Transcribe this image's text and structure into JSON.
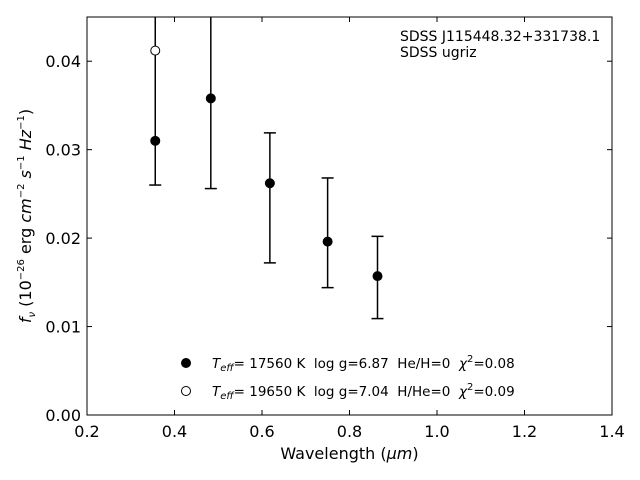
{
  "chart_data": {
    "type": "scatter",
    "xlabel": "Wavelength (",
    "xlabel_unit": "μm",
    "xlabel_close": ")",
    "ylabel_parts": {
      "f": "f",
      "f_sub": "ν",
      "open": " (10",
      "exp1": "−26",
      "mid": " erg ",
      "cm": "cm",
      "exp2": "−2",
      "s": " s",
      "exp3": "−1",
      "hz": " Hz",
      "exp4": "−1",
      "close": ")"
    },
    "xlim": [
      0.2,
      1.4
    ],
    "ylim": [
      0.0,
      0.045
    ],
    "xticks": [
      "0.2",
      "0.4",
      "0.6",
      "0.8",
      "1.0",
      "1.2",
      "1.4"
    ],
    "yticks": [
      "0.00",
      "0.01",
      "0.02",
      "0.03",
      "0.04"
    ],
    "annotation": [
      "SDSS J115448.32+331738.1",
      "SDSS ugriz"
    ],
    "observed": [
      {
        "x": 0.356,
        "y": 0.031,
        "ylow": 0.026,
        "yhigh": 0.046
      },
      {
        "x": 0.483,
        "y": 0.0358,
        "ylow": 0.0256,
        "yhigh": 0.046
      },
      {
        "x": 0.618,
        "y": 0.0262,
        "ylow": 0.0172,
        "yhigh": 0.0319
      },
      {
        "x": 0.75,
        "y": 0.0196,
        "ylow": 0.0144,
        "yhigh": 0.0268
      },
      {
        "x": 0.864,
        "y": 0.0157,
        "ylow": 0.0109,
        "yhigh": 0.0202
      }
    ],
    "model_points": [
      {
        "x": 0.356,
        "y": 0.0412
      }
    ],
    "legend": [
      {
        "marker": "filled",
        "teff_sym": "T",
        "teff_sub": "eff",
        "text": "= 17560 K  log g=6.87  He/H=0  ",
        "chi_sym": "χ",
        "chi_sup": "2",
        "chi_val": "=0.08"
      },
      {
        "marker": "open",
        "teff_sym": "T",
        "teff_sub": "eff",
        "text": "= 19650 K  log g=7.04  H/He=0  ",
        "chi_sym": "χ",
        "chi_sup": "2",
        "chi_val": "=0.09"
      }
    ],
    "legend_position": "lower-center",
    "grid": false
  }
}
